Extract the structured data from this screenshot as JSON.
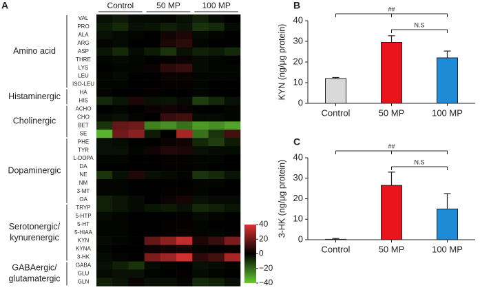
{
  "chart_data": [
    {
      "type": "heatmap",
      "panel": "A",
      "column_groups": [
        "Control",
        "50 MP",
        "100 MP"
      ],
      "zlim": [
        -40,
        40
      ],
      "zticks": [
        40,
        20,
        0,
        {
          "value": -20,
          "label": "−20"
        },
        {
          "value": -40,
          "label": "−40"
        }
      ],
      "colors": [
        "#66cc33",
        "#000000",
        "#dd3333"
      ],
      "row_groups": [
        {
          "label": [
            "Amino acid"
          ],
          "rows": [
            {
              "label": "VAL",
              "values": [
                -3,
                -5,
                -2,
                -2,
                -1,
                -3,
                -6,
                -2,
                0
              ]
            },
            {
              "label": "PRO",
              "values": [
                -5,
                -8,
                -3,
                -4,
                -6,
                -4,
                -10,
                -8,
                -2
              ]
            },
            {
              "label": "ALA",
              "values": [
                -3,
                -2,
                -1,
                0,
                3,
                5,
                -2,
                -1,
                0
              ]
            },
            {
              "label": "ARG",
              "values": [
                -1,
                -2,
                0,
                0,
                5,
                8,
                -1,
                0,
                0
              ]
            },
            {
              "label": "ASP",
              "values": [
                -4,
                -8,
                -2,
                -5,
                -10,
                -3,
                -6,
                -5,
                -8
              ]
            },
            {
              "label": "THRE",
              "values": [
                -1,
                -2,
                -1,
                0,
                1,
                2,
                -2,
                -1,
                0
              ]
            },
            {
              "label": "LYS",
              "values": [
                0,
                -1,
                -1,
                2,
                8,
                10,
                -2,
                -1,
                -1
              ]
            },
            {
              "label": "LEU",
              "values": [
                -1,
                -2,
                0,
                0,
                2,
                2,
                -1,
                -1,
                -1
              ]
            },
            {
              "label": "ISO-LEU",
              "values": [
                -1,
                -1,
                0,
                0,
                1,
                1,
                -1,
                0,
                0
              ]
            }
          ]
        },
        {
          "label": [
            "Histaminergic"
          ],
          "rows": [
            {
              "label": "HA",
              "values": [
                -1,
                0,
                0,
                1,
                0,
                0,
                -1,
                0,
                0
              ]
            },
            {
              "label": "HIS",
              "values": [
                -8,
                -4,
                5,
                -3,
                -4,
                -2,
                -12,
                -8,
                -3
              ]
            }
          ]
        },
        {
          "label": [
            "Cholinergic"
          ],
          "rows": [
            {
              "label": "ACHO",
              "values": [
                0,
                -1,
                0,
                2,
                3,
                2,
                0,
                0,
                -1
              ]
            },
            {
              "label": "CHO",
              "values": [
                -2,
                -3,
                -1,
                0,
                10,
                12,
                -2,
                -2,
                -1
              ]
            },
            {
              "label": "BET",
              "values": [
                -10,
                18,
                20,
                -25,
                -28,
                -22,
                -30,
                -28,
                -32
              ]
            },
            {
              "label": "SE",
              "values": [
                -35,
                20,
                25,
                -5,
                0,
                30,
                -22,
                -10,
                12
              ]
            }
          ]
        },
        {
          "label": [
            "Dopaminergic"
          ],
          "rows": [
            {
              "label": "PHE",
              "values": [
                -3,
                -2,
                0,
                0,
                2,
                3,
                -8,
                -12,
                -5
              ]
            },
            {
              "label": "TYR",
              "values": [
                -3,
                -3,
                -1,
                3,
                6,
                5,
                -3,
                -2,
                -2
              ]
            },
            {
              "label": "L-DOPA",
              "values": [
                -1,
                -1,
                0,
                0,
                1,
                1,
                -1,
                -1,
                0
              ]
            },
            {
              "label": "DA",
              "values": [
                0,
                0,
                0,
                0,
                1,
                1,
                -1,
                0,
                0
              ]
            },
            {
              "label": "NE",
              "values": [
                -10,
                -3,
                6,
                -3,
                -2,
                -1,
                -10,
                -8,
                -4
              ]
            },
            {
              "label": "NM",
              "values": [
                -1,
                -1,
                0,
                0,
                0,
                0,
                -1,
                -1,
                0
              ]
            },
            {
              "label": "3-MT",
              "values": [
                -1,
                -1,
                0,
                0,
                1,
                1,
                -1,
                0,
                0
              ]
            },
            {
              "label": "OA",
              "values": [
                -6,
                -4,
                -2,
                0,
                2,
                4,
                -3,
                -2,
                -2
              ]
            }
          ]
        },
        {
          "label": [
            "Serotonergic/",
            "kynurenergic"
          ],
          "rows": [
            {
              "label": "TRYP",
              "values": [
                -6,
                -4,
                -2,
                -4,
                -5,
                -3,
                -8,
                -6,
                -4
              ]
            },
            {
              "label": "5-HTP",
              "values": [
                -2,
                -1,
                0,
                0,
                0,
                1,
                -2,
                -1,
                0
              ]
            },
            {
              "label": "5-HT",
              "values": [
                -1,
                -1,
                0,
                0,
                1,
                1,
                -1,
                0,
                0
              ]
            },
            {
              "label": "5-HIAA",
              "values": [
                -1,
                -1,
                0,
                0,
                1,
                2,
                -1,
                -1,
                0
              ]
            },
            {
              "label": "KYN",
              "values": [
                -2,
                -1,
                0,
                18,
                25,
                35,
                5,
                10,
                22
              ]
            },
            {
              "label": "KYNA",
              "values": [
                -1,
                0,
                0,
                2,
                3,
                4,
                -1,
                0,
                1
              ]
            },
            {
              "label": "3-HK",
              "values": [
                -2,
                -1,
                0,
                22,
                28,
                38,
                8,
                12,
                30
              ]
            }
          ]
        },
        {
          "label": [
            "GABAergic/",
            "glutamatergic"
          ],
          "rows": [
            {
              "label": "GABA",
              "values": [
                -3,
                -6,
                -10,
                -2,
                -1,
                0,
                -3,
                -2,
                -1
              ]
            },
            {
              "label": "GLU",
              "values": [
                -2,
                -3,
                -3,
                -1,
                0,
                1,
                -2,
                -1,
                0
              ]
            },
            {
              "label": "GLN",
              "values": [
                -6,
                -4,
                2,
                -3,
                -3,
                -1,
                -8,
                -6,
                -3
              ]
            }
          ]
        }
      ]
    },
    {
      "type": "bar",
      "panel": "B",
      "ylabel": "KYN (ng/μg protein)",
      "categories": [
        "Control",
        "50 MP",
        "100 MP"
      ],
      "values": [
        12,
        29.5,
        22
      ],
      "errors": [
        0.5,
        3.2,
        3.3
      ],
      "colors": [
        "#d9d9d9",
        "#e8141c",
        "#1f8bd6"
      ],
      "ylim": [
        0,
        40
      ],
      "yticks": [
        0,
        10,
        20,
        30,
        40
      ],
      "annotations": [
        {
          "text": "##",
          "from": "Control",
          "to": "100 MP"
        },
        {
          "text": "N.S",
          "from": "50 MP",
          "to": "100 MP"
        }
      ]
    },
    {
      "type": "bar",
      "panel": "C",
      "ylabel": "3-HK (ng/μg protein)",
      "categories": [
        "Control",
        "50 MP",
        "100 MP"
      ],
      "values": [
        0.2,
        26.5,
        15
      ],
      "errors": [
        0.4,
        6.5,
        7.5
      ],
      "colors": [
        "#d9d9d9",
        "#e8141c",
        "#1f8bd6"
      ],
      "ylim": [
        0,
        40
      ],
      "yticks": [
        0,
        10,
        20,
        30,
        40
      ],
      "annotations": [
        {
          "text": "##",
          "from": "Control",
          "to": "100 MP"
        },
        {
          "text": "N.S",
          "from": "50 MP",
          "to": "100 MP"
        }
      ]
    }
  ]
}
